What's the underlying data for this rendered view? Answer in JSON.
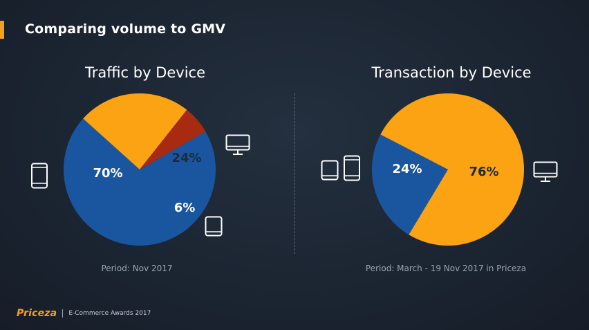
{
  "slide_title": "Comparing volume to GMV",
  "footer": {
    "brand": "Priceza",
    "text": "E-Commerce Awards 2017"
  },
  "colors": {
    "blue": "#1a56a0",
    "orange": "#fba313",
    "red": "#a82a10",
    "accent": "#f7a11a"
  },
  "chart_data": [
    {
      "type": "pie",
      "title": "Traffic by Device",
      "period": "Period: Nov 2017",
      "slices": [
        {
          "label": "Mobile",
          "value": 70,
          "text": "70%",
          "color": "#1a56a0",
          "text_color": "#ffffff",
          "icon": "smartphone-icon"
        },
        {
          "label": "Desktop",
          "value": 24,
          "text": "24%",
          "color": "#fba313",
          "text_color": "#1e2a38",
          "icon": "desktop-icon"
        },
        {
          "label": "Tablet",
          "value": 6,
          "text": "6%",
          "color": "#a82a10",
          "text_color": "#ffffff",
          "icon": "tablet-icon"
        }
      ]
    },
    {
      "type": "pie",
      "title": "Transaction by Device",
      "period": "Period: March - 19 Nov 2017 in Priceza",
      "slices": [
        {
          "label": "Mobile & Tablet",
          "value": 24,
          "text": "24%",
          "color": "#1a56a0",
          "text_color": "#ffffff",
          "icon": "tablet-and-phone-icon"
        },
        {
          "label": "Desktop",
          "value": 76,
          "text": "76%",
          "color": "#fba313",
          "text_color": "#1e2a38",
          "icon": "desktop-icon"
        }
      ]
    }
  ]
}
